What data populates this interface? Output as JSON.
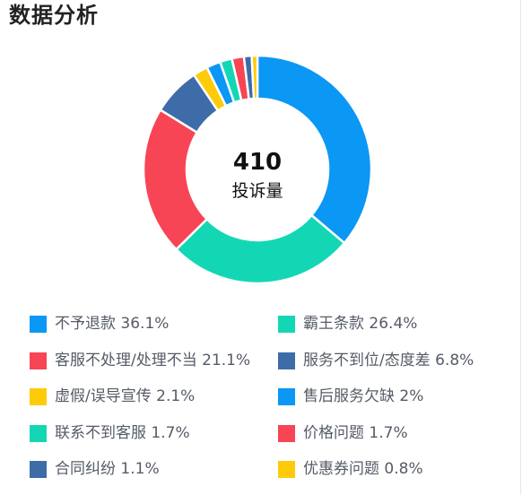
{
  "header": {
    "title": "数据分析"
  },
  "center": {
    "value": "410",
    "label": "投诉量"
  },
  "chart_data": {
    "type": "pie",
    "total": 410,
    "slices": [
      {
        "name": "不予退款",
        "percent": 36.1,
        "color": "#0b97f4"
      },
      {
        "name": "霸王条款",
        "percent": 26.4,
        "color": "#13d7b4"
      },
      {
        "name": "客服不处理/处理不当",
        "percent": 21.1,
        "color": "#f74555"
      },
      {
        "name": "服务不到位/态度差",
        "percent": 6.8,
        "color": "#3d6ca8"
      },
      {
        "name": "虚假/误导宣传",
        "percent": 2.1,
        "color": "#fdcb0a"
      },
      {
        "name": "售后服务欠缺",
        "percent": 2,
        "color": "#0b97f4"
      },
      {
        "name": "联系不到客服",
        "percent": 1.7,
        "color": "#13d7b4"
      },
      {
        "name": "价格问题",
        "percent": 1.7,
        "color": "#f74555"
      },
      {
        "name": "合同纠纷",
        "percent": 1.1,
        "color": "#3d6ca8"
      },
      {
        "name": "优惠券问题",
        "percent": 0.8,
        "color": "#fdcb0a"
      }
    ],
    "legend": [
      {
        "label": "不予退款 36.1%",
        "color": "#0b97f4"
      },
      {
        "label": "霸王条款 26.4%",
        "color": "#13d7b4"
      },
      {
        "label": "客服不处理/处理不当 21.1%",
        "color": "#f74555"
      },
      {
        "label": "服务不到位/态度差 6.8%",
        "color": "#3d6ca8"
      },
      {
        "label": "虚假/误导宣传 2.1%",
        "color": "#fdcb0a"
      },
      {
        "label": "售后服务欠缺 2%",
        "color": "#0b97f4"
      },
      {
        "label": "联系不到客服 1.7%",
        "color": "#13d7b4"
      },
      {
        "label": "价格问题 1.7%",
        "color": "#f74555"
      },
      {
        "label": "合同纠纷 1.1%",
        "color": "#3d6ca8"
      },
      {
        "label": "优惠券问题 0.8%",
        "color": "#fdcb0a"
      }
    ],
    "legend_placement": "bottom, two columns"
  }
}
